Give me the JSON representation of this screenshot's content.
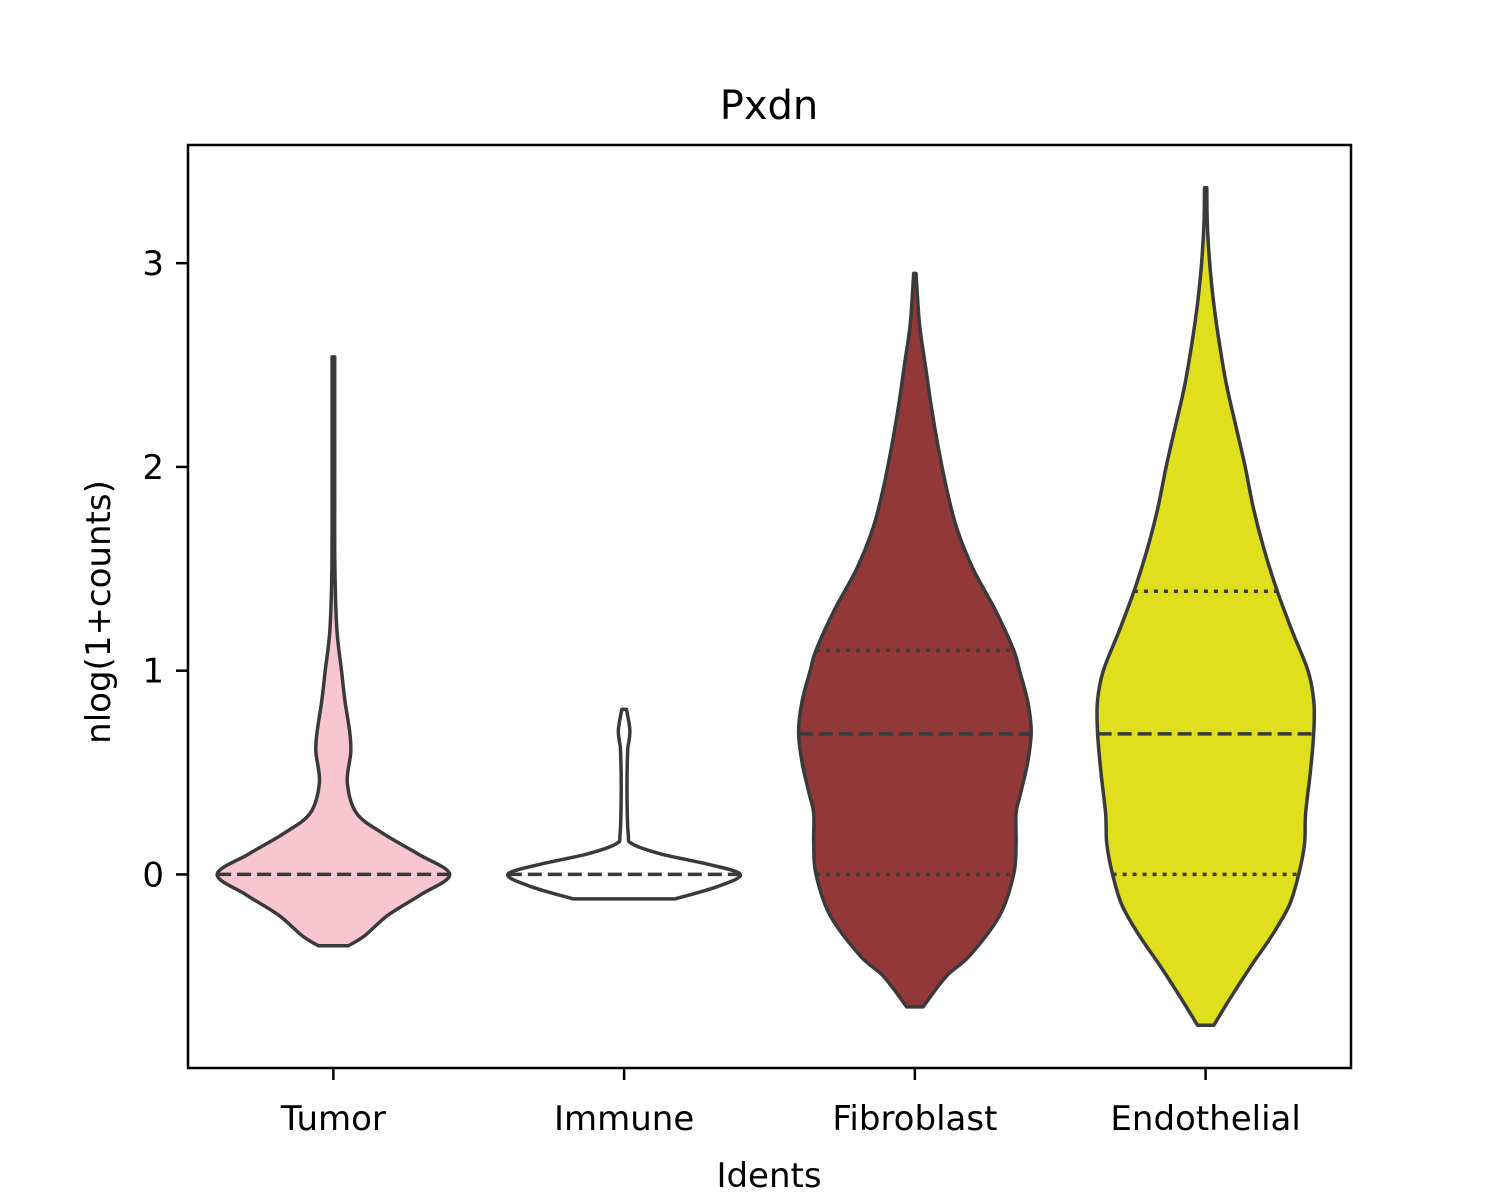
{
  "chart_data": {
    "type": "violin",
    "title": "Pxdn",
    "xlabel": "Idents",
    "ylabel": "nlog(1+counts)",
    "ylim": [
      -0.95,
      3.58
    ],
    "yticks": [
      "0",
      "1",
      "2",
      "3"
    ],
    "grid": false,
    "legend": "none",
    "categories": [
      "Tumor",
      "Immune",
      "Fibroblast",
      "Endothelial"
    ],
    "series": [
      {
        "category": "Tumor",
        "color": "#f7c6d0",
        "quartiles": [
          0,
          0,
          0
        ],
        "inner_style": "dashed",
        "density_profile": [
          [
            -0.35,
            0.13
          ],
          [
            -0.3,
            0.27
          ],
          [
            -0.2,
            0.47
          ],
          [
            -0.1,
            0.75
          ],
          [
            0,
            1.0
          ],
          [
            0.1,
            0.73
          ],
          [
            0.2,
            0.43
          ],
          [
            0.3,
            0.2
          ],
          [
            0.45,
            0.12
          ],
          [
            0.6,
            0.15
          ],
          [
            0.7,
            0.14
          ],
          [
            0.85,
            0.1
          ],
          [
            1.0,
            0.07
          ],
          [
            1.2,
            0.03
          ],
          [
            1.5,
            0.013
          ],
          [
            1.9,
            0.011
          ],
          [
            2.2,
            0.011
          ],
          [
            2.54,
            0.011
          ]
        ]
      },
      {
        "category": "Immune",
        "color": "#ffffff",
        "quartiles": [
          0,
          0,
          0
        ],
        "inner_style": "dashed",
        "density_profile": [
          [
            -0.12,
            0.44
          ],
          [
            -0.06,
            0.8
          ],
          [
            0,
            1.0
          ],
          [
            0.05,
            0.72
          ],
          [
            0.1,
            0.32
          ],
          [
            0.15,
            0.07
          ],
          [
            0.2,
            0.035
          ],
          [
            0.4,
            0.025
          ],
          [
            0.6,
            0.03
          ],
          [
            0.65,
            0.04
          ],
          [
            0.7,
            0.05
          ],
          [
            0.75,
            0.04
          ],
          [
            0.81,
            0.02
          ]
        ]
      },
      {
        "category": "Fibroblast",
        "color": "#933838",
        "quartiles": [
          0,
          0.69,
          1.1
        ],
        "inner_style": "quartiles",
        "density_profile": [
          [
            -0.65,
            0.07
          ],
          [
            -0.5,
            0.27
          ],
          [
            -0.4,
            0.47
          ],
          [
            -0.2,
            0.73
          ],
          [
            0,
            0.85
          ],
          [
            0.15,
            0.87
          ],
          [
            0.3,
            0.87
          ],
          [
            0.4,
            0.91
          ],
          [
            0.55,
            0.97
          ],
          [
            0.7,
            1.0
          ],
          [
            0.85,
            0.97
          ],
          [
            1.0,
            0.9
          ],
          [
            1.1,
            0.85
          ],
          [
            1.3,
            0.69
          ],
          [
            1.5,
            0.5
          ],
          [
            1.7,
            0.36
          ],
          [
            1.9,
            0.27
          ],
          [
            2.1,
            0.2
          ],
          [
            2.3,
            0.14
          ],
          [
            2.5,
            0.09
          ],
          [
            2.7,
            0.04
          ],
          [
            2.95,
            0.01
          ]
        ]
      },
      {
        "category": "Endothelial",
        "color": "#dfdf1e",
        "quartiles": [
          0,
          0.69,
          1.39
        ],
        "inner_style": "quartiles",
        "density_profile": [
          [
            -0.74,
            0.07
          ],
          [
            -0.6,
            0.22
          ],
          [
            -0.45,
            0.39
          ],
          [
            -0.3,
            0.57
          ],
          [
            -0.15,
            0.72
          ],
          [
            0,
            0.8
          ],
          [
            0.15,
            0.85
          ],
          [
            0.3,
            0.86
          ],
          [
            0.5,
            0.9
          ],
          [
            0.7,
            0.93
          ],
          [
            0.85,
            0.93
          ],
          [
            1.0,
            0.88
          ],
          [
            1.2,
            0.74
          ],
          [
            1.4,
            0.61
          ],
          [
            1.6,
            0.5
          ],
          [
            1.8,
            0.41
          ],
          [
            2.0,
            0.34
          ],
          [
            2.2,
            0.26
          ],
          [
            2.4,
            0.18
          ],
          [
            2.6,
            0.12
          ],
          [
            2.8,
            0.07
          ],
          [
            3.0,
            0.035
          ],
          [
            3.2,
            0.014
          ],
          [
            3.37,
            0.01
          ]
        ]
      }
    ]
  }
}
